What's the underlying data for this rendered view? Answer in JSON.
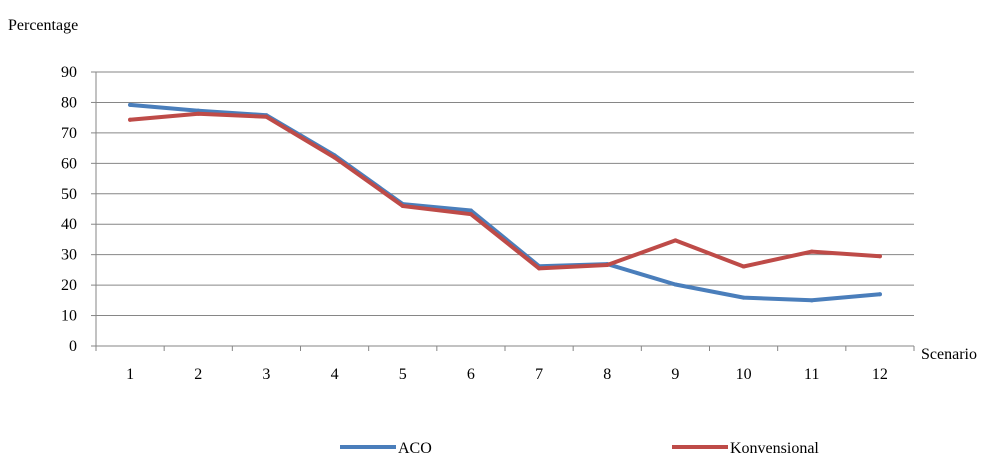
{
  "chart_data": {
    "type": "line",
    "title": "",
    "xlabel": "Scenario",
    "ylabel": "Percentage",
    "x": [
      "1",
      "2",
      "3",
      "4",
      "5",
      "6",
      "7",
      "8",
      "9",
      "10",
      "11",
      "12"
    ],
    "ylim": [
      0,
      90
    ],
    "yticks": [
      0,
      10,
      20,
      30,
      40,
      50,
      60,
      70,
      80,
      90
    ],
    "grid": true,
    "legend_position": "bottom",
    "series": [
      {
        "name": "ACO",
        "color": "#4a7ebb",
        "values": [
          79.2,
          77.3,
          75.8,
          62.6,
          46.6,
          44.5,
          26.2,
          26.9,
          20.2,
          15.9,
          15.0,
          17.0
        ]
      },
      {
        "name": "Konvensional",
        "color": "#be4b48",
        "values": [
          74.3,
          76.3,
          75.3,
          61.9,
          46.0,
          43.3,
          25.5,
          26.6,
          34.7,
          26.1,
          31.0,
          29.5
        ]
      }
    ]
  }
}
